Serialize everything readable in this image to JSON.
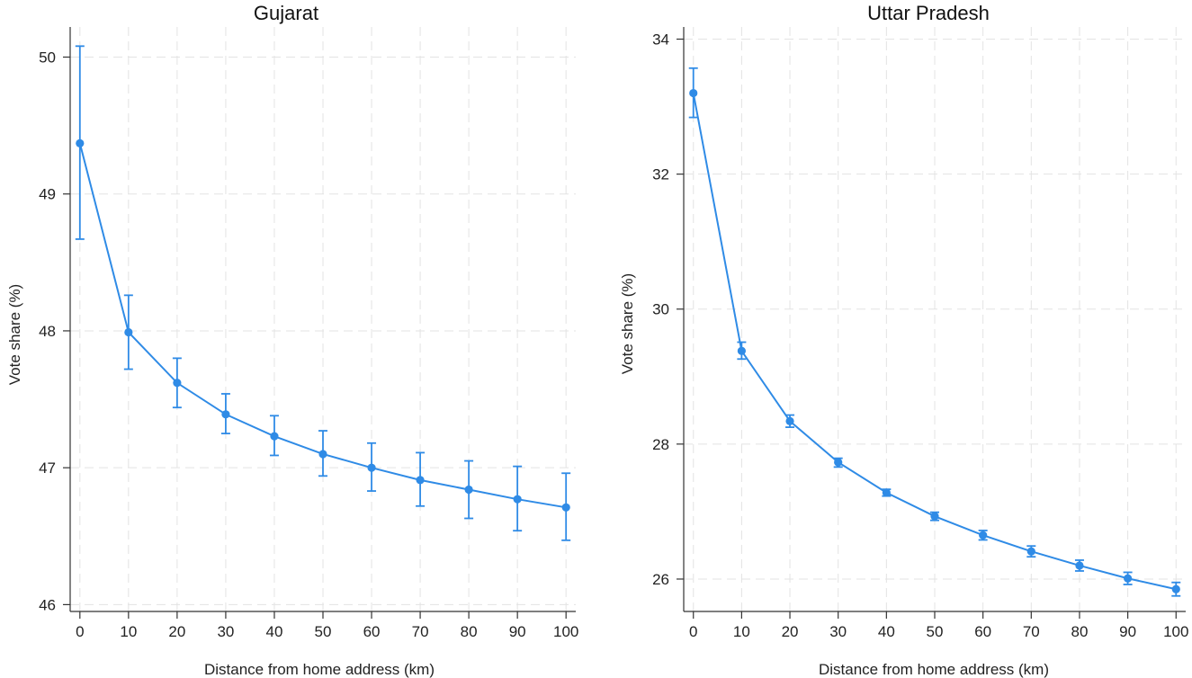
{
  "chart_data": [
    {
      "type": "line",
      "title": "Gujarat",
      "xlabel": "Distance from home address (km)",
      "ylabel": "Vote share (%)",
      "x": [
        0,
        10,
        20,
        30,
        40,
        50,
        60,
        70,
        80,
        90,
        100
      ],
      "values": [
        49.37,
        47.99,
        47.62,
        47.39,
        47.23,
        47.1,
        47.0,
        46.91,
        46.84,
        46.77,
        46.71
      ],
      "ci_low": [
        48.67,
        47.72,
        47.44,
        47.25,
        47.09,
        46.94,
        46.83,
        46.72,
        46.63,
        46.54,
        46.47
      ],
      "ci_high": [
        50.08,
        48.26,
        47.8,
        47.54,
        47.38,
        47.27,
        47.18,
        47.11,
        47.05,
        47.01,
        46.96
      ],
      "xticks": [
        0,
        10,
        20,
        30,
        40,
        50,
        60,
        70,
        80,
        90,
        100
      ],
      "yticks": [
        46,
        47,
        48,
        49,
        50
      ],
      "xlim": [
        -2,
        102
      ],
      "ylim": [
        45.95,
        50.22
      ],
      "grid": true,
      "color": "#2f8be6"
    },
    {
      "type": "line",
      "title": "Uttar Pradesh",
      "xlabel": "Distance from home address (km)",
      "ylabel": "Vote share (%)",
      "x": [
        0,
        10,
        20,
        30,
        40,
        50,
        60,
        70,
        80,
        90,
        100
      ],
      "values": [
        33.2,
        29.38,
        28.34,
        27.73,
        27.28,
        26.93,
        26.65,
        26.41,
        26.2,
        26.01,
        25.85
      ],
      "ci_low": [
        32.84,
        29.26,
        28.25,
        27.66,
        27.23,
        26.87,
        26.58,
        26.33,
        26.12,
        25.92,
        25.75
      ],
      "ci_high": [
        33.57,
        29.51,
        28.43,
        27.79,
        27.33,
        26.99,
        26.72,
        26.49,
        26.28,
        26.1,
        25.95
      ],
      "xticks": [
        0,
        10,
        20,
        30,
        40,
        50,
        60,
        70,
        80,
        90,
        100
      ],
      "yticks": [
        26,
        28,
        30,
        32,
        34
      ],
      "xlim": [
        -2,
        102
      ],
      "ylim": [
        25.52,
        34.18
      ],
      "grid": true,
      "color": "#2f8be6"
    }
  ]
}
